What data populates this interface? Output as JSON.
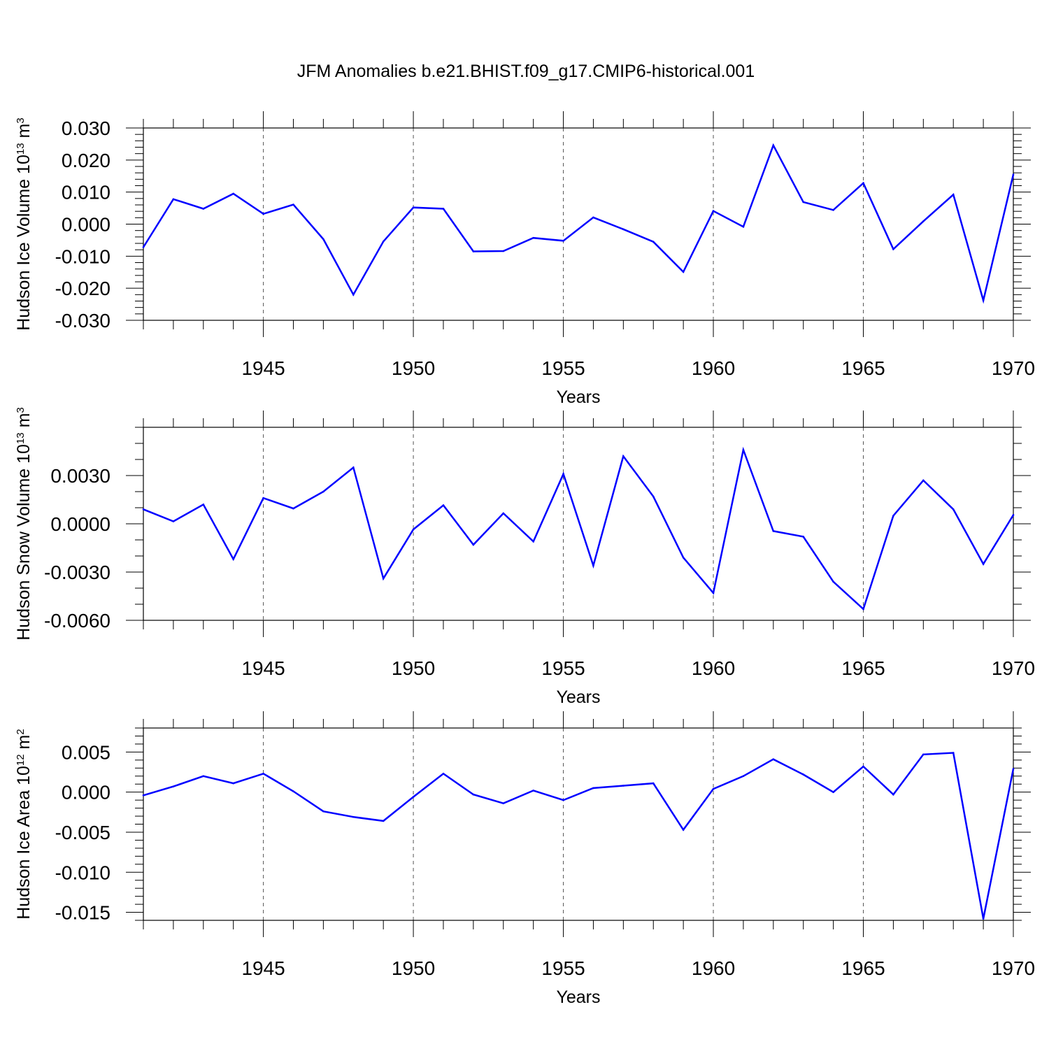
{
  "figure": {
    "title": "JFM Anomalies b.e21.BHIST.f09_g17.CMIP6-historical.001",
    "line_color": "#0000ff"
  },
  "chart_data": [
    {
      "type": "line",
      "title": "",
      "xlabel": "Years",
      "ylabel": {
        "prefix": "Hudson Ice Volume 10",
        "exp": "13",
        "unit": " m",
        "unit_exp": "3"
      },
      "xlim": [
        1941,
        1970
      ],
      "ylim": [
        -0.03,
        0.03
      ],
      "x_ticks": [
        1945,
        1950,
        1955,
        1960,
        1965,
        1970
      ],
      "x_tick_labels": [
        "1945",
        "1950",
        "1955",
        "1960",
        "1965",
        "1970"
      ],
      "y_ticks": [
        -0.03,
        -0.02,
        -0.01,
        0.0,
        0.01,
        0.02,
        0.03
      ],
      "y_tick_labels": [
        "-0.030",
        "-0.020",
        "-0.010",
        "0.000",
        "0.010",
        "0.020",
        "0.030"
      ],
      "y_minor_step": 0.002,
      "grid": "vertical dashed at major x ticks",
      "series": [
        {
          "x": [
            1941,
            1942,
            1943,
            1944,
            1945,
            1946,
            1947,
            1948,
            1949,
            1950,
            1951,
            1952,
            1953,
            1954,
            1955,
            1956,
            1957,
            1958,
            1959,
            1960,
            1961,
            1962,
            1963,
            1964,
            1965,
            1966,
            1967,
            1968,
            1969,
            1970
          ],
          "values": [
            -0.0072,
            0.0078,
            0.0048,
            0.0095,
            0.0032,
            0.0061,
            -0.0047,
            -0.022,
            -0.0054,
            0.0052,
            0.0048,
            -0.0085,
            -0.0084,
            -0.0043,
            -0.0052,
            0.0021,
            -0.0016,
            -0.0055,
            -0.0149,
            0.0041,
            -0.0008,
            0.0246,
            0.0069,
            0.0044,
            0.0128,
            -0.0078,
            0.0009,
            0.0092,
            -0.0238,
            0.0155
          ]
        }
      ]
    },
    {
      "type": "line",
      "title": "",
      "xlabel": "Years",
      "ylabel": {
        "prefix": "Hudson Snow Volume 10",
        "exp": "13",
        "unit": " m",
        "unit_exp": "3"
      },
      "xlim": [
        1941,
        1970
      ],
      "ylim": [
        -0.006,
        0.006
      ],
      "x_ticks": [
        1945,
        1950,
        1955,
        1960,
        1965,
        1970
      ],
      "x_tick_labels": [
        "1945",
        "1950",
        "1955",
        "1960",
        "1965",
        "1970"
      ],
      "y_ticks": [
        -0.006,
        -0.003,
        0.0,
        0.003
      ],
      "y_tick_labels": [
        "-0.0060",
        "-0.0030",
        "0.0000",
        "0.0030"
      ],
      "y_minor_step": 0.001,
      "grid": "vertical dashed at major x ticks",
      "series": [
        {
          "x": [
            1941,
            1942,
            1943,
            1944,
            1945,
            1946,
            1947,
            1948,
            1949,
            1950,
            1951,
            1952,
            1953,
            1954,
            1955,
            1956,
            1957,
            1958,
            1959,
            1960,
            1961,
            1962,
            1963,
            1964,
            1965,
            1966,
            1967,
            1968,
            1969,
            1970
          ],
          "values": [
            0.0009,
            0.00015,
            0.0012,
            -0.0022,
            0.0016,
            0.00095,
            0.002,
            0.0035,
            -0.0034,
            -0.00035,
            0.00115,
            -0.0013,
            0.00065,
            -0.0011,
            0.0031,
            -0.0026,
            0.0042,
            0.0017,
            -0.0021,
            -0.0043,
            0.0046,
            -0.00045,
            -0.0008,
            -0.0036,
            -0.0053,
            0.0005,
            0.0027,
            0.0009,
            -0.0025,
            0.00055
          ]
        }
      ]
    },
    {
      "type": "line",
      "title": "",
      "xlabel": "Years",
      "ylabel": {
        "prefix": "Hudson Ice Area 10",
        "exp": "12",
        "unit": " m",
        "unit_exp": "2"
      },
      "xlim": [
        1941,
        1970
      ],
      "ylim": [
        -0.016,
        0.008
      ],
      "x_ticks": [
        1945,
        1950,
        1955,
        1960,
        1965,
        1970
      ],
      "x_tick_labels": [
        "1945",
        "1950",
        "1955",
        "1960",
        "1965",
        "1970"
      ],
      "y_ticks": [
        -0.015,
        -0.01,
        -0.005,
        0.0,
        0.005
      ],
      "y_tick_labels": [
        "-0.015",
        "-0.010",
        "-0.005",
        "0.000",
        "0.005"
      ],
      "y_minor_step": 0.001,
      "grid": "vertical dashed at major x ticks",
      "series": [
        {
          "x": [
            1941,
            1942,
            1943,
            1944,
            1945,
            1946,
            1947,
            1948,
            1949,
            1950,
            1951,
            1952,
            1953,
            1954,
            1955,
            1956,
            1957,
            1958,
            1959,
            1960,
            1961,
            1962,
            1963,
            1964,
            1965,
            1966,
            1967,
            1968,
            1969,
            1970
          ],
          "values": [
            -0.0004,
            0.0007,
            0.002,
            0.0011,
            0.0023,
            0.0001,
            -0.0024,
            -0.0031,
            -0.0036,
            -0.0006,
            0.0023,
            -0.0003,
            -0.0014,
            0.0002,
            -0.001,
            0.0005,
            0.0008,
            0.0011,
            -0.0047,
            0.0004,
            0.002,
            0.0041,
            0.0022,
            0.0,
            0.0032,
            -0.0003,
            0.0047,
            0.0049,
            -0.0158,
            0.0029
          ]
        }
      ]
    }
  ]
}
